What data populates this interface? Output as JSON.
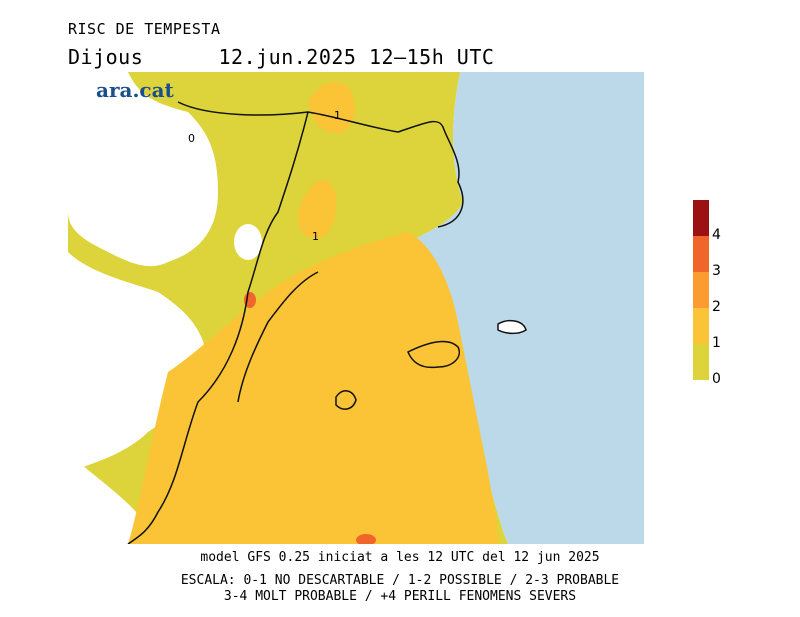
{
  "header": {
    "title": "RISC DE TEMPESTA",
    "day": "Dijous",
    "date_range": "12.jun.2025 12–15h UTC"
  },
  "logo": {
    "text": "ara.cat"
  },
  "map": {
    "contour_labels": [
      "0",
      "1",
      "1"
    ]
  },
  "legend": {
    "colors": [
      "#dcd43a",
      "#fbc437",
      "#fb9b32",
      "#f0652a",
      "#9c1111"
    ],
    "labels": [
      "0",
      "1",
      "2",
      "3",
      "4"
    ]
  },
  "footer": {
    "line1": "model GFS 0.25 iniciat a les 12 UTC del 12 jun 2025",
    "line2": "ESCALA: 0-1 NO DESCARTABLE / 1-2 POSSIBLE / 2-3 PROBABLE",
    "line3": "3-4 MOLT PROBABLE / +4 PERILL FENOMENS SEVERS"
  }
}
